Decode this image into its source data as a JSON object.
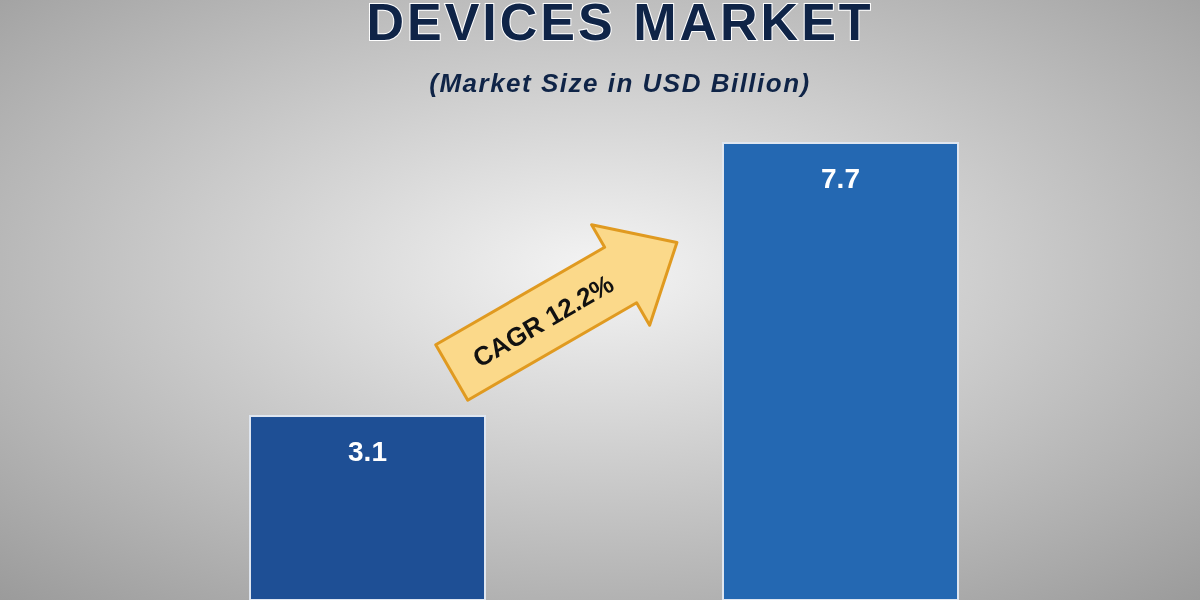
{
  "chart_data": {
    "type": "bar",
    "title": "DEVICES MARKET",
    "subtitle": "(Market Size in USD Billion)",
    "categories": [
      null,
      null
    ],
    "values": [
      3.1,
      7.7
    ],
    "colors": [
      "#1e4f95",
      "#2468b2"
    ],
    "data_labels": true,
    "annotations": [
      "CAGR 12.2%"
    ]
  }
}
